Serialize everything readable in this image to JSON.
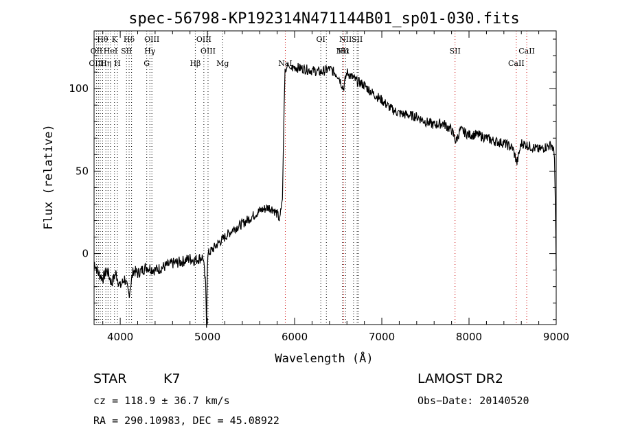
{
  "chart_data": {
    "type": "line",
    "title": "spec-56798-KP192314N471144B01_sp01-030.fits",
    "xlabel": "Wavelength (Å)",
    "ylabel": "Flux (relative)",
    "xlim": [
      3700,
      9000
    ],
    "ylim": [
      -43,
      135
    ],
    "grid": false,
    "x_ticks": [
      4000,
      5000,
      6000,
      7000,
      8000,
      9000
    ],
    "y_ticks": [
      0,
      50,
      100
    ],
    "series": [
      {
        "x": [
          3700,
          3750,
          3800,
          3850,
          3900,
          3950,
          4000,
          4050,
          4100,
          4150,
          4200,
          4300,
          4400,
          4500,
          4600,
          4700,
          4800,
          4850,
          4900,
          4950,
          4980,
          4990,
          5000,
          5010,
          5050,
          5100,
          5200,
          5300,
          5400,
          5500,
          5600,
          5700,
          5750,
          5800,
          5830,
          5850,
          5860,
          5870,
          5880,
          5890,
          5900,
          5920,
          5950,
          6000,
          6100,
          6200,
          6300,
          6400,
          6500,
          6560,
          6600,
          6700,
          6800,
          6900,
          7000,
          7100,
          7200,
          7300,
          7400,
          7500,
          7600,
          7700,
          7800,
          7850,
          7900,
          8000,
          8100,
          8200,
          8300,
          8400,
          8500,
          8550,
          8600,
          8700,
          8800,
          8900,
          8950,
          8980,
          8990,
          9000
        ],
        "y": [
          -5,
          -12,
          -15,
          -10,
          -18,
          -12,
          -20,
          -15,
          -25,
          -10,
          -12,
          -8,
          -10,
          -8,
          -6,
          -5,
          -3,
          -4,
          -3,
          -2,
          -20,
          -42,
          -6,
          0,
          2,
          5,
          10,
          15,
          18,
          22,
          26,
          28,
          27,
          24,
          20,
          30,
          33,
          60,
          90,
          112,
          110,
          115,
          112,
          113,
          112,
          111,
          110,
          112,
          108,
          100,
          110,
          105,
          102,
          97,
          93,
          88,
          85,
          84,
          83,
          80,
          78,
          79,
          75,
          68,
          75,
          72,
          72,
          70,
          68,
          67,
          64,
          55,
          67,
          65,
          63,
          65,
          66,
          60,
          30,
          -10
        ]
      }
    ],
    "spectral_lines": [
      {
        "label": "Hθ",
        "x": 3798,
        "row": 1,
        "color": "#000000"
      },
      {
        "label": "K",
        "x": 3934,
        "row": 1,
        "color": "#000000"
      },
      {
        "label": "Hδ",
        "x": 4102,
        "row": 1,
        "color": "#000000"
      },
      {
        "label": "OIII",
        "x": 4363,
        "row": 1,
        "color": "#000000"
      },
      {
        "label": "OIII",
        "x": 4959,
        "row": 1,
        "color": "#000000"
      },
      {
        "label": "OI",
        "x": 6300,
        "row": 1,
        "color": "#000000"
      },
      {
        "label": "NII",
        "x": 6584,
        "row": 1,
        "color": "#000000"
      },
      {
        "label": "SII",
        "x": 6717,
        "row": 1,
        "color": "#000000"
      },
      {
        "label": "OII",
        "x": 3727,
        "row": 2,
        "color": "#000000"
      },
      {
        "label": "HeI",
        "x": 3889,
        "row": 2,
        "color": "#000000"
      },
      {
        "label": "SII",
        "x": 4072,
        "row": 2,
        "color": "#000000"
      },
      {
        "label": "Hγ",
        "x": 4340,
        "row": 2,
        "color": "#000000"
      },
      {
        "label": "OIII",
        "x": 5007,
        "row": 2,
        "color": "#000000"
      },
      {
        "label": "NII",
        "x": 6548,
        "row": 2,
        "color": "#000000"
      },
      {
        "label": "Hα",
        "x": 6563,
        "row": 2,
        "color": "#cc0000"
      },
      {
        "label": "SII",
        "x": 7840,
        "row": 2,
        "color": "#cc0000"
      },
      {
        "label": "CaII",
        "x": 8662,
        "row": 2,
        "color": "#cc0000"
      },
      {
        "label": "OIII",
        "x": 3727,
        "row": 3,
        "color": "#000000"
      },
      {
        "label": "Hη",
        "x": 3835,
        "row": 3,
        "color": "#000000"
      },
      {
        "label": "H",
        "x": 3968,
        "row": 3,
        "color": "#000000"
      },
      {
        "label": "G",
        "x": 4304,
        "row": 3,
        "color": "#000000"
      },
      {
        "label": "Hβ",
        "x": 4861,
        "row": 3,
        "color": "#000000"
      },
      {
        "label": "Mg",
        "x": 5175,
        "row": 3,
        "color": "#000000"
      },
      {
        "label": "NaI",
        "x": 5893,
        "row": 3,
        "color": "#cc0000"
      },
      {
        "label": "CaII",
        "x": 8542,
        "row": 3,
        "color": "#cc0000"
      }
    ],
    "extra_line_x": [
      3750,
      3771,
      3860,
      4130,
      6364,
      6676,
      6731
    ]
  },
  "info": {
    "object_class": "STAR",
    "subclass": "K7",
    "survey": "LAMOST DR2",
    "cz": "cz = 118.9 ± 36.7 km/s",
    "obs_date": "Obs−Date: 20140520",
    "coords": "RA = 290.10983, DEC =  45.08922"
  }
}
